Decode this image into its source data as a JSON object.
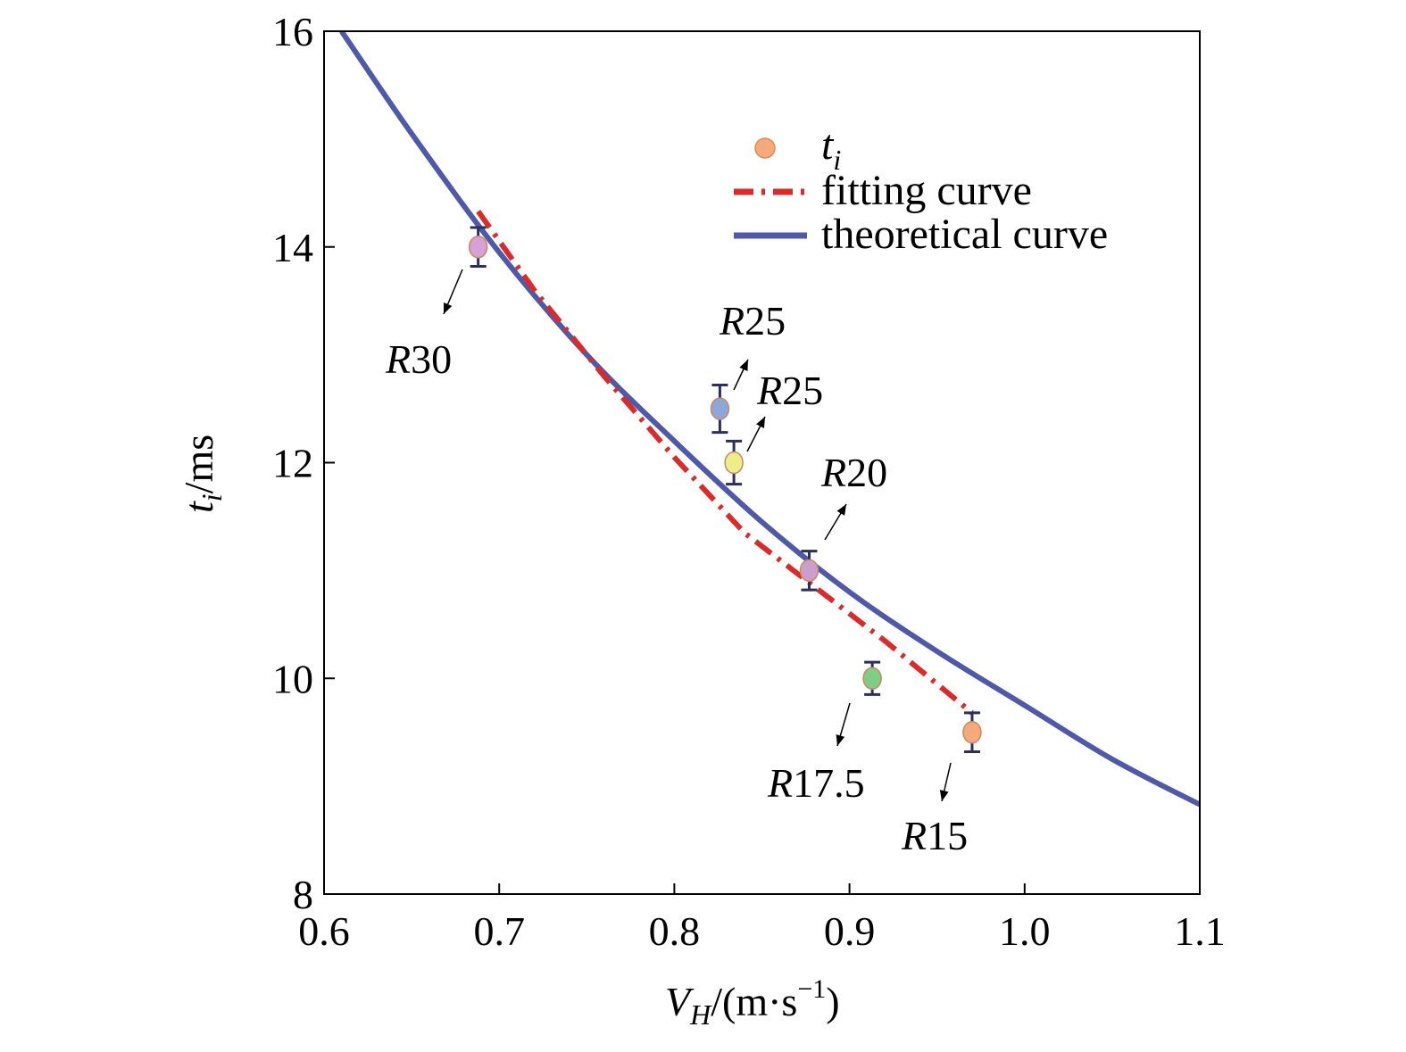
{
  "chart_data": {
    "type": "scatter",
    "xlabel": {
      "main": "V",
      "sub": "H",
      "units": "/(m·s",
      "exp": "−1",
      "close": ")"
    },
    "ylabel": {
      "main": "t",
      "sub": "i",
      "units": "/ms"
    },
    "xlim": [
      0.6,
      1.1
    ],
    "ylim": [
      8,
      16
    ],
    "x_ticks": [
      "0.6",
      "0.7",
      "0.8",
      "0.9",
      "1.0",
      "1.1"
    ],
    "y_ticks": [
      "8",
      "10",
      "12",
      "14",
      "16"
    ],
    "grid": false,
    "legend_position": "top-right",
    "series": [
      {
        "name": "t",
        "name_sub": "i",
        "kind": "points",
        "points": [
          {
            "x": 0.688,
            "y": 14.0,
            "err": 0.18,
            "color": "#d9a0d6",
            "label": "R30"
          },
          {
            "x": 0.826,
            "y": 12.5,
            "err": 0.22,
            "color": "#8fa7d8",
            "label": "R25"
          },
          {
            "x": 0.834,
            "y": 12.0,
            "err": 0.2,
            "color": "#eeee88",
            "label": "R25"
          },
          {
            "x": 0.877,
            "y": 11.0,
            "err": 0.18,
            "color": "#cc9fcb",
            "label": "R20"
          },
          {
            "x": 0.913,
            "y": 10.0,
            "err": 0.15,
            "color": "#7ecf83",
            "label": "R17.5"
          },
          {
            "x": 0.97,
            "y": 9.5,
            "err": 0.18,
            "color": "#f4aa7a",
            "label": "R15"
          }
        ]
      },
      {
        "name": "fitting curve",
        "kind": "line",
        "style": "dashdot",
        "color": "#d92b2b",
        "x": [
          0.688,
          0.72,
          0.76,
          0.8,
          0.84,
          0.88,
          0.92,
          0.97
        ],
        "y": [
          14.33,
          13.6,
          12.8,
          12.05,
          11.35,
          10.85,
          10.35,
          9.68
        ]
      },
      {
        "name": "theoretical curve",
        "kind": "line",
        "style": "solid",
        "color": "#4f59a9",
        "x": [
          0.61,
          0.65,
          0.7,
          0.75,
          0.8,
          0.85,
          0.9,
          0.95,
          1.0,
          1.05,
          1.1
        ],
        "y": [
          16.0,
          15.05,
          13.95,
          13.0,
          12.2,
          11.45,
          10.8,
          10.25,
          9.75,
          9.25,
          8.83
        ]
      }
    ]
  },
  "colors": {
    "axes": "#000000",
    "fit": "#d92b2b",
    "theory": "#4f59a9",
    "errorbar": "#2a2f5c"
  }
}
